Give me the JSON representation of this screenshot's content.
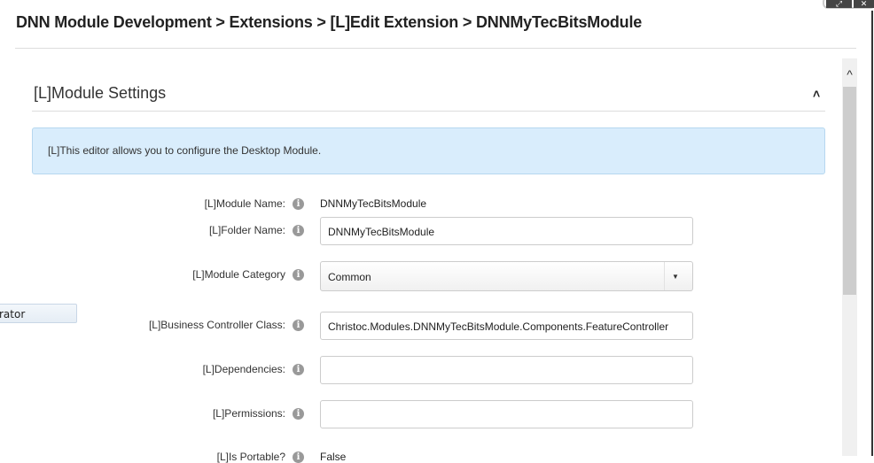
{
  "header": {
    "breadcrumb": "DNN Module Development > Extensions > [L]Edit Extension > DNNMyTecBitsModule"
  },
  "window_controls": {
    "restore_icon": "⤢",
    "close_icon": "✕"
  },
  "side": {
    "button_fragment": "rator"
  },
  "section": {
    "title": "[L]Module Settings",
    "toggle_icon": "˄",
    "info": "[L]This editor allows you to configure the Desktop Module."
  },
  "fields": [
    {
      "label": "[L]Module Name:",
      "value": "DNNMyTecBitsModule"
    },
    {
      "label": "[L]Folder Name:",
      "value": "DNNMyTecBitsModule"
    },
    {
      "label": "[L]Module Category",
      "value": "Common"
    },
    {
      "label": "[L]Business Controller Class:",
      "value": "Christoc.Modules.DNNMyTecBitsModule.Components.FeatureController"
    },
    {
      "label": "[L]Dependencies:",
      "value": ""
    },
    {
      "label": "[L]Permissions:",
      "value": ""
    },
    {
      "label": "[L]Is Portable?",
      "value": "False"
    }
  ],
  "info_icon": "i",
  "scrollbar": {
    "up_icon": "^"
  }
}
